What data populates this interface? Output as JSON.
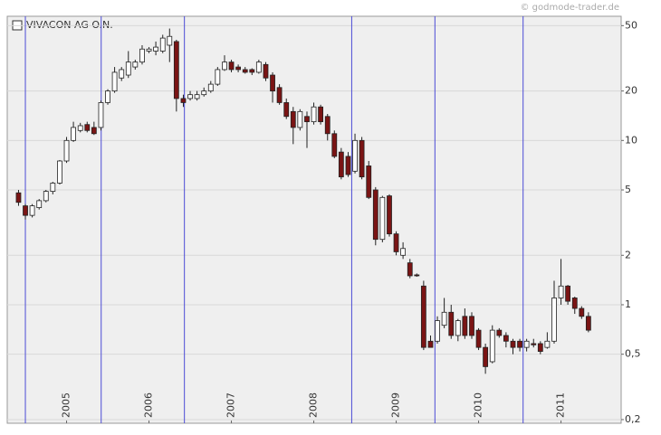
{
  "chart_data": {
    "type": "candlestick",
    "title": "VIVACON AG O.N.",
    "watermark": "© godmode-trader.de",
    "log_scale": true,
    "grid": true,
    "up_color": "#ffffff",
    "down_color": "#7a1414",
    "marker_color": "#4b4bd6",
    "ylim": [
      0.19,
      57
    ],
    "yticks": [
      {
        "value": 0.2,
        "label": "0,2"
      },
      {
        "value": 0.5,
        "label": "0,5"
      },
      1,
      2,
      5,
      10,
      20,
      50
    ],
    "xlim": [
      2004.78,
      2012.23
    ],
    "xticks": [
      {
        "value": 2005.5,
        "label": "2005"
      },
      {
        "value": 2006.5,
        "label": "2006"
      },
      {
        "value": 2007.5,
        "label": "2007"
      },
      {
        "value": 2008.5,
        "label": "2008"
      },
      {
        "value": 2009.5,
        "label": "2009"
      },
      {
        "value": 2010.5,
        "label": "2010"
      },
      {
        "value": 2011.5,
        "label": "2011"
      }
    ],
    "markers": [
      2005.0,
      2005.92,
      2006.93,
      2008.96,
      2009.97,
      2011.04
    ],
    "x": [
      2004.917,
      2005.0,
      2005.083,
      2005.167,
      2005.25,
      2005.333,
      2005.417,
      2005.5,
      2005.583,
      2005.667,
      2005.75,
      2005.833,
      2005.917,
      2006.0,
      2006.083,
      2006.167,
      2006.25,
      2006.333,
      2006.417,
      2006.5,
      2006.583,
      2006.667,
      2006.75,
      2006.833,
      2006.917,
      2007.0,
      2007.083,
      2007.167,
      2007.25,
      2007.333,
      2007.417,
      2007.5,
      2007.583,
      2007.667,
      2007.75,
      2007.833,
      2007.917,
      2008.0,
      2008.083,
      2008.167,
      2008.25,
      2008.333,
      2008.417,
      2008.5,
      2008.583,
      2008.667,
      2008.75,
      2008.833,
      2008.917,
      2009.0,
      2009.083,
      2009.167,
      2009.25,
      2009.333,
      2009.417,
      2009.5,
      2009.583,
      2009.667,
      2009.75,
      2009.833,
      2009.917,
      2010.0,
      2010.083,
      2010.167,
      2010.25,
      2010.333,
      2010.417,
      2010.5,
      2010.583,
      2010.667,
      2010.75,
      2010.833,
      2010.917,
      2011.0,
      2011.083,
      2011.167,
      2011.25,
      2011.333,
      2011.417,
      2011.5,
      2011.583,
      2011.667,
      2011.75,
      2011.833
    ],
    "open": [
      4.8,
      4.0,
      3.5,
      3.9,
      4.3,
      4.9,
      5.5,
      7.5,
      10,
      11.5,
      12.5,
      12,
      12,
      17,
      20,
      24,
      25,
      28,
      30,
      35,
      35,
      35,
      38,
      40,
      18,
      18,
      18,
      19,
      20,
      22,
      27,
      30,
      28,
      27,
      27,
      26,
      29,
      25,
      21,
      17,
      15,
      12,
      14,
      13,
      16,
      14,
      11,
      8.5,
      8,
      6.5,
      10,
      7,
      5,
      2.5,
      4.6,
      2.7,
      2.0,
      1.8,
      1.52,
      1.3,
      0.6,
      0.6,
      0.75,
      0.9,
      0.65,
      0.85,
      0.85,
      0.7,
      0.55,
      0.45,
      0.7,
      0.65,
      0.6,
      0.6,
      0.55,
      0.58,
      0.58,
      0.55,
      0.6,
      1.1,
      1.3,
      1.1,
      0.95,
      0.85
    ],
    "high": [
      5.0,
      4.1,
      4.1,
      4.4,
      5.0,
      5.6,
      7.6,
      10.5,
      13,
      12.8,
      13,
      13,
      17.5,
      20.5,
      28,
      28,
      35,
      31,
      38,
      37,
      40,
      44,
      48,
      41,
      19,
      20,
      20,
      21,
      23,
      28,
      33,
      31,
      29,
      28,
      27.5,
      31,
      30,
      26,
      22,
      18,
      16,
      15.5,
      15,
      17,
      16.5,
      14.5,
      11.5,
      9,
      8.5,
      11,
      10.5,
      7.5,
      5.2,
      4.6,
      4.7,
      2.8,
      2.4,
      1.9,
      1.55,
      1.4,
      0.65,
      0.85,
      1.1,
      1.0,
      0.82,
      0.95,
      0.9,
      0.72,
      0.58,
      0.75,
      0.72,
      0.68,
      0.62,
      0.62,
      0.62,
      0.62,
      0.6,
      0.68,
      1.4,
      1.9,
      1.32,
      1.12,
      0.98,
      0.9
    ],
    "low": [
      4.0,
      3.3,
      3.4,
      3.8,
      4.2,
      4.7,
      5.4,
      7.3,
      9.8,
      11.2,
      11.2,
      10.8,
      11.5,
      16.5,
      19.5,
      23,
      24,
      27,
      29,
      34,
      33,
      34,
      30,
      15,
      16,
      17.5,
      17.5,
      18.5,
      19.5,
      21.5,
      26.5,
      26,
      26,
      25.5,
      25,
      25.5,
      23,
      17,
      16.5,
      13.5,
      9.5,
      11.5,
      9,
      12.5,
      12.5,
      10,
      7.8,
      5.8,
      6,
      6.3,
      5.8,
      4.4,
      2.3,
      2.4,
      2.6,
      2.0,
      1.9,
      1.45,
      1.48,
      0.53,
      0.55,
      0.58,
      0.72,
      0.62,
      0.6,
      0.62,
      0.62,
      0.53,
      0.38,
      0.44,
      0.63,
      0.55,
      0.5,
      0.52,
      0.52,
      0.55,
      0.5,
      0.54,
      0.58,
      1.0,
      1.0,
      0.88,
      0.82,
      0.68
    ],
    "close": [
      4.2,
      3.5,
      4.0,
      4.3,
      4.9,
      5.5,
      7.5,
      10,
      12,
      12.3,
      11.5,
      11,
      17,
      20,
      26,
      27,
      30,
      30,
      36,
      36,
      37,
      42,
      43,
      18,
      17,
      19,
      19,
      20,
      22,
      27,
      30,
      27,
      27,
      26,
      26,
      30,
      24,
      20,
      17,
      14,
      12,
      15,
      13,
      16,
      13,
      11,
      8,
      6,
      6.2,
      10,
      6,
      4.5,
      2.5,
      4.5,
      2.7,
      2.1,
      2.2,
      1.5,
      1.5,
      0.55,
      0.55,
      0.8,
      0.9,
      0.65,
      0.8,
      0.65,
      0.65,
      0.55,
      0.42,
      0.7,
      0.65,
      0.6,
      0.55,
      0.55,
      0.6,
      0.57,
      0.52,
      0.6,
      1.1,
      1.3,
      1.05,
      0.95,
      0.85,
      0.7
    ]
  }
}
